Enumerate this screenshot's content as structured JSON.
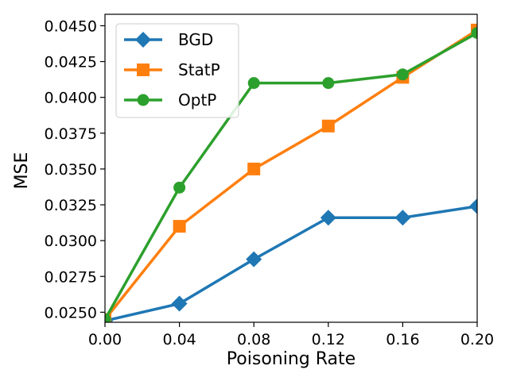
{
  "chart_data": {
    "type": "line",
    "title": "",
    "xlabel": "Poisoning Rate",
    "ylabel": "MSE",
    "xlim": [
      0.0,
      0.2
    ],
    "ylim": [
      0.0243,
      0.0458
    ],
    "grid": false,
    "legend_position": "top-left",
    "x": [
      0.0,
      0.04,
      0.08,
      0.12,
      0.16,
      0.2
    ],
    "x_tick_labels": [
      "0.00",
      "0.04",
      "0.08",
      "0.12",
      "0.16",
      "0.20"
    ],
    "y_ticks": [
      0.025,
      0.0275,
      0.03,
      0.0325,
      0.035,
      0.0375,
      0.04,
      0.0425,
      0.045
    ],
    "y_tick_labels": [
      "0.0250",
      "0.0275",
      "0.0300",
      "0.0325",
      "0.0350",
      "0.0375",
      "0.0400",
      "0.0425",
      "0.0450"
    ],
    "series": [
      {
        "name": "BGD",
        "color": "#1f77b4",
        "marker": "diamond",
        "values": [
          0.0244,
          0.0256,
          0.0287,
          0.0316,
          0.0316,
          0.0324
        ]
      },
      {
        "name": "StatP",
        "color": "#ff7f0e",
        "marker": "square",
        "values": [
          0.0245,
          0.031,
          0.035,
          0.038,
          0.0414,
          0.0447
        ]
      },
      {
        "name": "OptP",
        "color": "#2ca02c",
        "marker": "circle",
        "values": [
          0.0245,
          0.0337,
          0.041,
          0.041,
          0.0416,
          0.0445
        ]
      }
    ]
  }
}
